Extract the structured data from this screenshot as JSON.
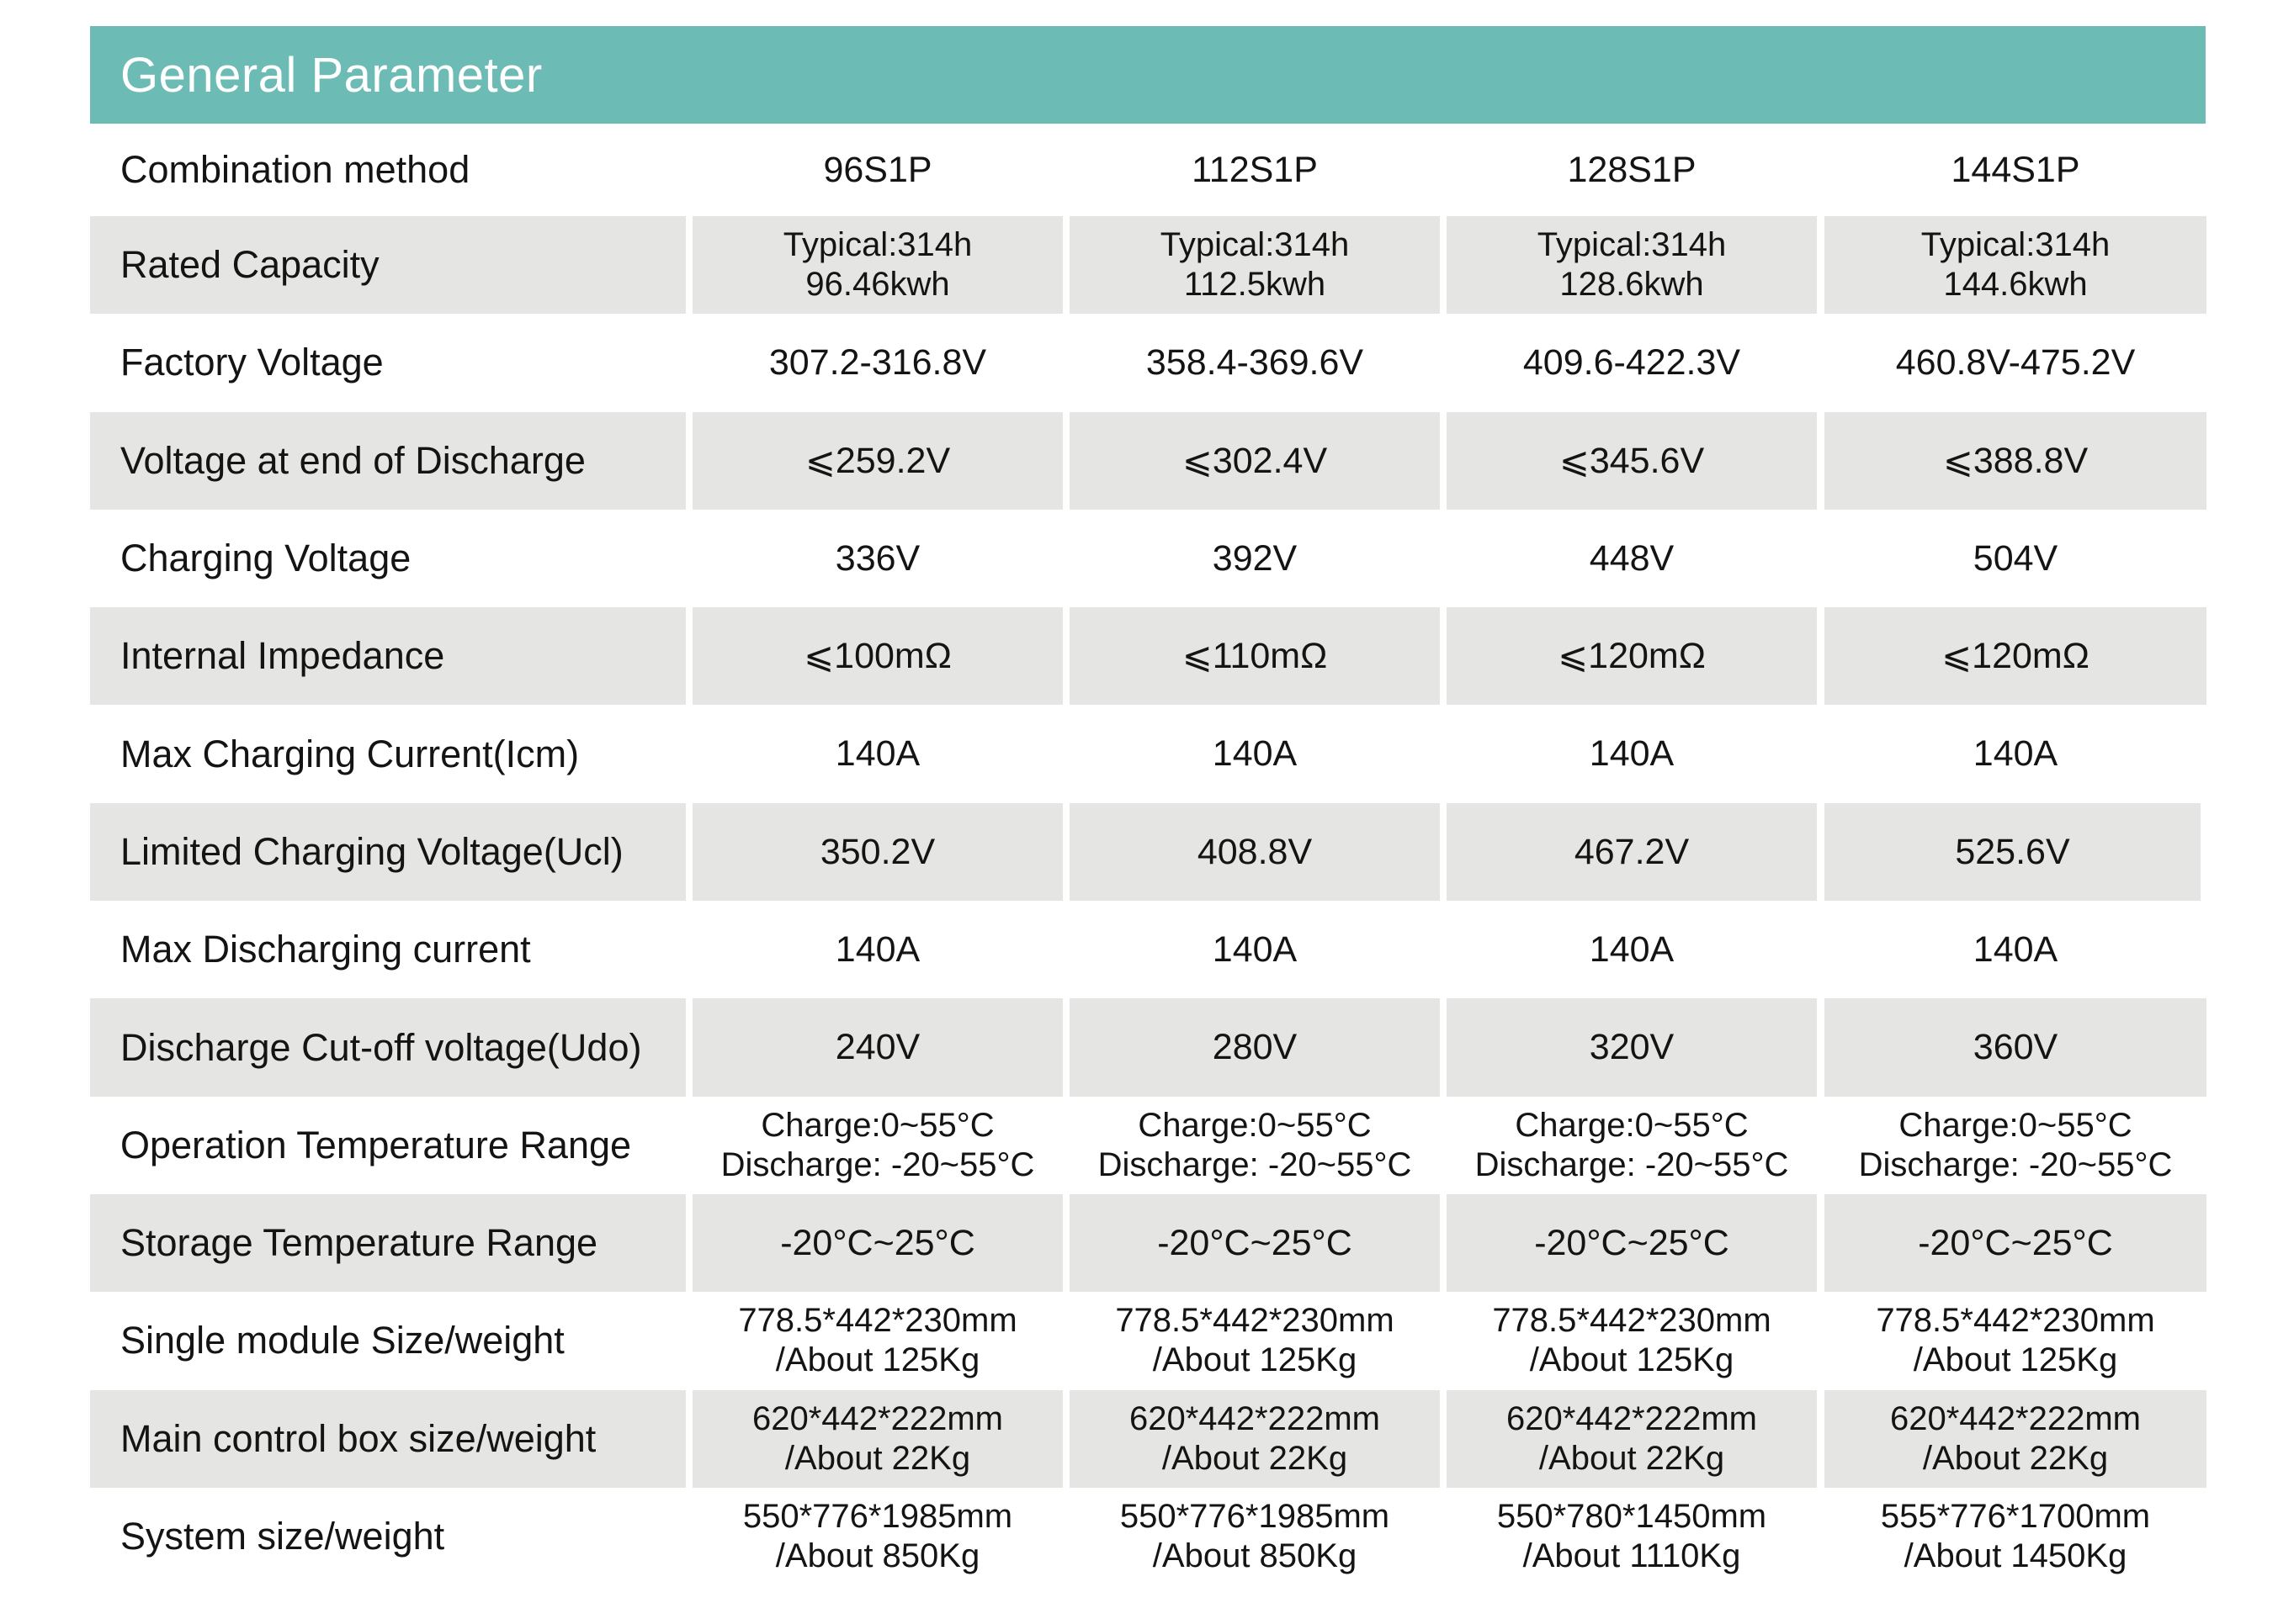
{
  "header": {
    "title": "General Parameter"
  },
  "colors": {
    "header_bg": "#6cbbb5",
    "stripe_bg": "#e5e5e4",
    "text": "#141414"
  },
  "table": {
    "columns": [
      "96S1P",
      "112S1P",
      "128S1P",
      "144S1P"
    ],
    "rows": [
      {
        "label": "Combination method",
        "values": [
          "96S1P",
          "112S1P",
          "128S1P",
          "144S1P"
        ]
      },
      {
        "label": "Rated Capacity",
        "values": [
          "Typical:314h\n96.46kwh",
          "Typical:314h\n112.5kwh",
          "Typical:314h\n128.6kwh",
          "Typical:314h\n144.6kwh"
        ]
      },
      {
        "label": "Factory Voltage",
        "values": [
          "307.2-316.8V",
          "358.4-369.6V",
          "409.6-422.3V",
          "460.8V-475.2V"
        ]
      },
      {
        "label": "Voltage at end of Discharge",
        "values": [
          "⩽259.2V",
          "⩽302.4V",
          "⩽345.6V",
          "⩽388.8V"
        ]
      },
      {
        "label": "Charging Voltage",
        "values": [
          "336V",
          "392V",
          "448V",
          "504V"
        ]
      },
      {
        "label": "Internal Impedance",
        "values": [
          "⩽100mΩ",
          "⩽110mΩ",
          "⩽120mΩ",
          "⩽120mΩ"
        ]
      },
      {
        "label": "Max Charging Current(Icm)",
        "values": [
          "140A",
          "140A",
          "140A",
          "140A"
        ]
      },
      {
        "label": "Limited Charging Voltage(Ucl)",
        "values": [
          "350.2V",
          "408.8V",
          "467.2V",
          "525.6V"
        ]
      },
      {
        "label": "Max Discharging current",
        "values": [
          "140A",
          "140A",
          "140A",
          "140A"
        ]
      },
      {
        "label": "Discharge Cut-off voltage(Udo)",
        "values": [
          "240V",
          "280V",
          "320V",
          "360V"
        ]
      },
      {
        "label": "Operation Temperature Range",
        "values": [
          "Charge:0~55°C\nDischarge: -20~55°C",
          "Charge:0~55°C\nDischarge: -20~55°C",
          "Charge:0~55°C\nDischarge: -20~55°C",
          "Charge:0~55°C\nDischarge: -20~55°C"
        ]
      },
      {
        "label": "Storage Temperature Range",
        "values": [
          "-20°C~25°C",
          "-20°C~25°C",
          "-20°C~25°C",
          "-20°C~25°C"
        ]
      },
      {
        "label": "Single module Size/weight",
        "values": [
          "778.5*442*230mm\n/About 125Kg",
          "778.5*442*230mm\n/About 125Kg",
          "778.5*442*230mm\n/About 125Kg",
          "778.5*442*230mm\n/About 125Kg"
        ]
      },
      {
        "label": "Main control box size/weight",
        "values": [
          "620*442*222mm\n/About 22Kg",
          "620*442*222mm\n/About 22Kg",
          "620*442*222mm\n/About 22Kg",
          "620*442*222mm\n/About 22Kg"
        ]
      },
      {
        "label": "System size/weight",
        "values": [
          "550*776*1985mm\n/About 850Kg",
          "550*776*1985mm\n/About 850Kg",
          "550*780*1450mm\n/About 1110Kg",
          "555*776*1700mm\n/About 1450Kg"
        ]
      }
    ]
  }
}
